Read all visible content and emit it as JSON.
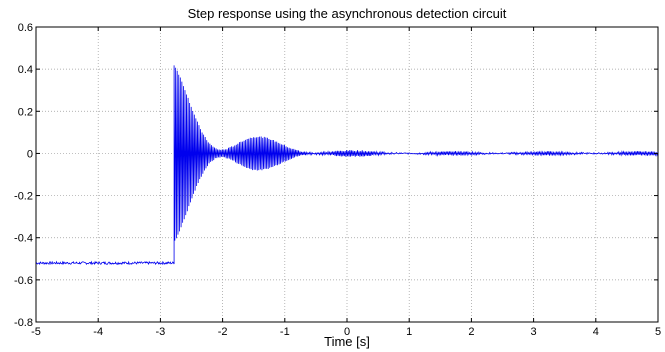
{
  "chart_data": {
    "type": "line",
    "title": "Step response using the asynchronous detection circuit",
    "xlabel": "Time [s]",
    "ylabel": "",
    "xlim": [
      -5,
      5
    ],
    "ylim": [
      -0.8,
      0.6
    ],
    "x_ticks": [
      -5,
      -4,
      -3,
      -2,
      -1,
      0,
      1,
      2,
      3,
      4,
      5
    ],
    "y_ticks": [
      -0.8,
      -0.6,
      -0.4,
      -0.2,
      0,
      0.2,
      0.4,
      0.6
    ],
    "x_tick_labels": [
      "-5",
      "-4",
      "-3",
      "-2",
      "-1",
      "0",
      "1",
      "2",
      "3",
      "4",
      "5"
    ],
    "y_tick_labels": [
      "-0.8",
      "-0.6",
      "-0.4",
      "-0.2",
      "0",
      "0.2",
      "0.4",
      "0.6"
    ],
    "grid": true,
    "series_color": "#0000ee",
    "series": [
      {
        "segments": [
          {
            "shape": "constant",
            "x_range": [
              -5,
              -2.78
            ],
            "y": -0.52
          },
          {
            "shape": "decaying-oscillation",
            "x_range": [
              -2.78,
              5
            ],
            "center": 0,
            "initial_amplitude": 0.42,
            "final_amplitude": 0.008
          }
        ],
        "x": [
          -5,
          -4,
          -3,
          -2.78,
          -2.78,
          -2.5,
          -2,
          -1.5,
          -1,
          -0.5,
          0,
          1,
          2,
          3,
          4,
          5
        ],
        "y_upper": [
          -0.515,
          -0.515,
          -0.515,
          -0.515,
          0.41,
          0.3,
          0.16,
          0.09,
          0.05,
          0.03,
          0.02,
          0.012,
          0.01,
          0.01,
          0.01,
          0.01
        ],
        "y_lower": [
          -0.53,
          -0.53,
          -0.53,
          -0.53,
          -0.45,
          -0.3,
          -0.16,
          -0.09,
          -0.05,
          -0.03,
          -0.02,
          -0.012,
          -0.01,
          -0.01,
          -0.01,
          -0.01
        ]
      }
    ]
  }
}
